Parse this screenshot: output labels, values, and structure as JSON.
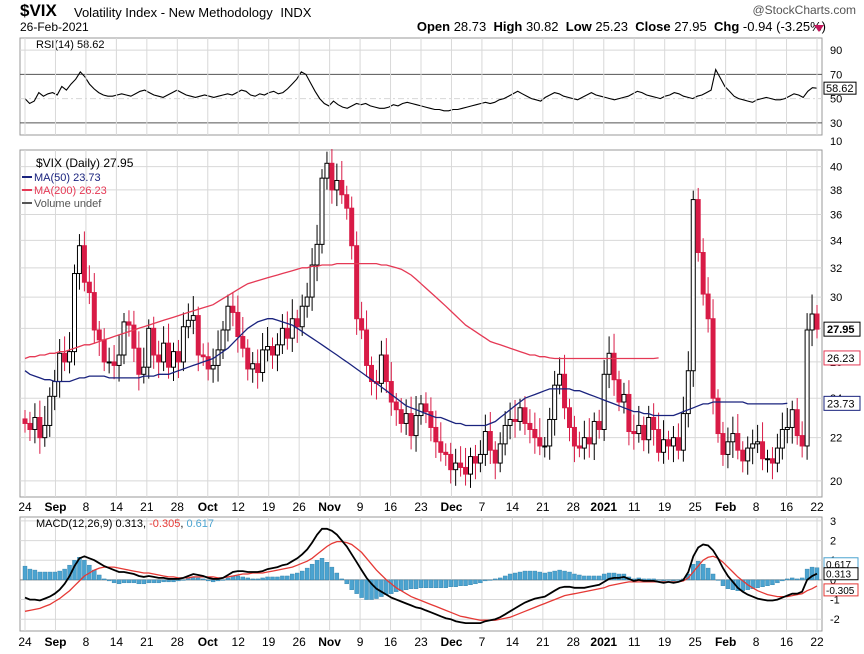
{
  "header": {
    "symbol": "$VIX",
    "name": "Volatility Index - New Methodology",
    "exchange": "INDX",
    "date": "26-Feb-2021",
    "open_label": "Open",
    "open": "28.73",
    "high_label": "High",
    "high": "30.82",
    "low_label": "Low",
    "low": "25.23",
    "close_label": "Close",
    "close": "27.95",
    "chg_label": "Chg",
    "chg": "-0.94 (-3.25%)",
    "watermark": "@StockCharts.com"
  },
  "colors": {
    "up": "#000000",
    "down": "#d81b46",
    "ma50": "#1a237e",
    "ma200": "#e53955",
    "macd_hist": "#4ba3d0",
    "macd_signal": "#e53935",
    "grid": "#d8d8d8"
  },
  "chart_data": [
    {
      "type": "line",
      "panel": "RSI",
      "title": "RSI(14) 58.62",
      "levels": [
        30,
        50,
        70,
        90
      ],
      "overbought": 70,
      "oversold": 30,
      "current": 58.62,
      "current_label": "58.62",
      "values": [
        50,
        46,
        48,
        55,
        52,
        54,
        55,
        53,
        60,
        57,
        62,
        66,
        72,
        68,
        62,
        58,
        55,
        53,
        52,
        52,
        53,
        54,
        53,
        52,
        54,
        56,
        57,
        55,
        53,
        52,
        51,
        53,
        55,
        57,
        55,
        53,
        52,
        51,
        52,
        53,
        52,
        51,
        52,
        53,
        54,
        53,
        55,
        57,
        56,
        53,
        52,
        54,
        53,
        55,
        56,
        54,
        55,
        58,
        62,
        66,
        72,
        70,
        63,
        56,
        50,
        46,
        44,
        48,
        45,
        43,
        42,
        44,
        46,
        45,
        46,
        44,
        43,
        42,
        42,
        43,
        45,
        44,
        46,
        47,
        46,
        45,
        44,
        43,
        42,
        41,
        41,
        40,
        40,
        41,
        41,
        42,
        43,
        44,
        45,
        46,
        47,
        46,
        47,
        49,
        50,
        52,
        54,
        56,
        54,
        52,
        50,
        49,
        48,
        51,
        53,
        55,
        54,
        52,
        51,
        50,
        49,
        51,
        53,
        55,
        53,
        52,
        51,
        50,
        49,
        50,
        51,
        52,
        54,
        56,
        55,
        53,
        52,
        51,
        50,
        52,
        53,
        55,
        54,
        52,
        51,
        50,
        52,
        53,
        55,
        57,
        74,
        67,
        60,
        56,
        52,
        50,
        49,
        48,
        47,
        49,
        50,
        51,
        50,
        49,
        49,
        50,
        52,
        54,
        53,
        51,
        56,
        59,
        58.62
      ]
    },
    {
      "type": "candlestick",
      "panel": "Price",
      "title": "$VIX (Daily) 27.95",
      "legend": [
        {
          "name": "MA(50) 23.73",
          "color": "#1a237e"
        },
        {
          "name": "MA(200) 26.23",
          "color": "#e53955"
        },
        {
          "name": "Volume undef",
          "color": "#555555"
        }
      ],
      "y_ticks": [
        20,
        22,
        24,
        26,
        28,
        30,
        32,
        34,
        36,
        38,
        40
      ],
      "ylim": [
        19.3,
        41.5
      ],
      "scale": "log",
      "x_tick_labels": [
        "24",
        "Sep",
        "8",
        "14",
        "21",
        "28",
        "Oct",
        "12",
        "19",
        "26",
        "Nov",
        "9",
        "16",
        "23",
        "Dec",
        "7",
        "14",
        "21",
        "28",
        "2021",
        "11",
        "19",
        "25",
        "Feb",
        "8",
        "16",
        "22"
      ],
      "price_labels": [
        {
          "value": 27.95,
          "text": "27.95",
          "bg": "#ffffff",
          "color": "#000000"
        },
        {
          "value": 26.23,
          "text": "26.23",
          "bg": "#ffffff",
          "color": "#000000"
        },
        {
          "value": 23.73,
          "text": "23.73",
          "bg": "#ffffff",
          "color": "#000000"
        }
      ],
      "close": [
        22.7,
        22.4,
        23.0,
        22.0,
        22.6,
        24.1,
        24.9,
        26.5,
        26.0,
        26.6,
        31.6,
        33.6,
        31.0,
        30.3,
        27.9,
        27.3,
        26.0,
        26.0,
        25.8,
        26.4,
        28.4,
        28.2,
        26.8,
        25.3,
        25.7,
        28.0,
        26.4,
        26.0,
        27.1,
        25.7,
        26.6,
        26.0,
        28.1,
        28.5,
        28.8,
        26.4,
        26.3,
        25.6,
        25.8,
        26.7,
        27.9,
        29.4,
        29.0,
        27.5,
        26.8,
        25.6,
        25.9,
        25.4,
        26.7,
        26.9,
        26.4,
        27.0,
        28.0,
        27.4,
        28.6,
        28.1,
        29.4,
        30.0,
        32.2,
        33.7,
        39.0,
        40.3,
        38.0,
        38.8,
        37.6,
        36.5,
        33.6,
        28.6,
        27.9,
        25.8,
        24.9,
        24.8,
        26.4,
        24.9,
        23.8,
        23.4,
        22.7,
        23.2,
        22.1,
        23.1,
        23.7,
        23.3,
        22.5,
        21.8,
        21.3,
        21.2,
        20.5,
        20.8,
        20.6,
        20.3,
        21.1,
        20.8,
        21.2,
        22.3,
        21.4,
        20.8,
        21.7,
        22.6,
        22.9,
        22.8,
        23.5,
        22.7,
        22.4,
        22.0,
        21.6,
        21.6,
        22.9,
        24.7,
        25.3,
        23.5,
        22.5,
        21.6,
        21.5,
        22.0,
        21.7,
        22.8,
        22.4,
        25.3,
        26.5,
        25.0,
        23.8,
        24.2,
        22.3,
        22.2,
        22.6,
        21.9,
        23.0,
        22.4,
        21.3,
        21.9,
        21.6,
        22.0,
        21.4,
        23.2,
        25.5,
        37.2,
        33.1,
        30.2,
        28.6,
        24.0,
        22.2,
        21.2,
        21.8,
        22.2,
        21.4,
        20.9,
        21.5,
        21.7,
        21.8,
        21.0,
        21.0,
        20.8,
        21.5,
        22.4,
        22.5,
        23.4,
        22.1,
        21.6,
        27.9,
        28.9,
        27.95
      ],
      "ma50": [
        25.5,
        25.3,
        25.2,
        25.1,
        25.0,
        25.0,
        24.9,
        24.9,
        24.9,
        24.9,
        25.0,
        25.1,
        25.1,
        25.2,
        25.2,
        25.2,
        25.2,
        25.1,
        25.1,
        25.1,
        25.1,
        25.1,
        25.1,
        25.1,
        25.2,
        25.2,
        25.2,
        25.3,
        25.3,
        25.3,
        25.4,
        25.5,
        25.6,
        25.7,
        25.8,
        25.9,
        26.0,
        26.1,
        26.2,
        26.4,
        26.6,
        26.8,
        27.1,
        27.4,
        27.7,
        28.0,
        28.2,
        28.4,
        28.5,
        28.6,
        28.6,
        28.5,
        28.4,
        28.3,
        28.2,
        28.0,
        27.8,
        27.6,
        27.4,
        27.2,
        27.0,
        26.8,
        26.6,
        26.4,
        26.2,
        26.0,
        25.8,
        25.6,
        25.4,
        25.2,
        25.0,
        24.8,
        24.6,
        24.4,
        24.2,
        24.0,
        23.8,
        23.6,
        23.5,
        23.4,
        23.3,
        23.2,
        23.1,
        23.0,
        23.0,
        22.9,
        22.8,
        22.7,
        22.7,
        22.6,
        22.6,
        22.6,
        22.6,
        22.6,
        22.7,
        22.8,
        23.0,
        23.2,
        23.4,
        23.6,
        23.8,
        24.0,
        24.1,
        24.2,
        24.3,
        24.4,
        24.5,
        24.5,
        24.5,
        24.5,
        24.5,
        24.4,
        24.4,
        24.3,
        24.2,
        24.1,
        24.0,
        23.9,
        23.8,
        23.7,
        23.6,
        23.5,
        23.4,
        23.3,
        23.3,
        23.2,
        23.2,
        23.1,
        23.1,
        23.1,
        23.1,
        23.1,
        23.2,
        23.3,
        23.4,
        23.5,
        23.6,
        23.7,
        23.7,
        23.8,
        23.8,
        23.8,
        23.8,
        23.8,
        23.8,
        23.8,
        23.7,
        23.7,
        23.7,
        23.7,
        23.7,
        23.7,
        23.7,
        23.7,
        23.73
      ],
      "ma200": [
        26.2,
        26.3,
        26.3,
        26.4,
        26.4,
        26.5,
        26.5,
        26.6,
        26.6,
        26.7,
        26.8,
        26.9,
        27.0,
        27.0,
        27.1,
        27.2,
        27.3,
        27.4,
        27.5,
        27.6,
        27.7,
        27.8,
        27.9,
        28.0,
        28.1,
        28.2,
        28.3,
        28.4,
        28.5,
        28.6,
        28.7,
        28.8,
        28.9,
        29.0,
        29.1,
        29.2,
        29.3,
        29.4,
        29.5,
        29.7,
        29.9,
        30.1,
        30.3,
        30.5,
        30.7,
        30.9,
        31.0,
        31.1,
        31.2,
        31.3,
        31.4,
        31.5,
        31.6,
        31.7,
        31.8,
        31.9,
        32.0,
        32.0,
        32.1,
        32.1,
        32.2,
        32.2,
        32.2,
        32.3,
        32.3,
        32.3,
        32.3,
        32.3,
        32.3,
        32.3,
        32.3,
        32.3,
        32.2,
        32.2,
        32.1,
        32.0,
        31.9,
        31.7,
        31.5,
        31.2,
        30.9,
        30.6,
        30.3,
        30.0,
        29.7,
        29.4,
        29.1,
        28.8,
        28.5,
        28.2,
        28.0,
        27.8,
        27.6,
        27.4,
        27.2,
        27.1,
        27.0,
        26.9,
        26.8,
        26.7,
        26.6,
        26.5,
        26.4,
        26.4,
        26.3,
        26.3,
        26.23,
        26.2,
        26.2,
        26.2,
        26.2,
        26.2,
        26.2,
        26.2,
        26.2,
        26.2,
        26.2,
        26.2,
        26.2,
        26.2,
        26.2,
        26.2,
        26.2,
        26.2,
        26.2,
        26.2,
        26.2,
        26.2,
        26.23
      ]
    },
    {
      "type": "bar+line",
      "panel": "MACD",
      "title": "MACD(12,26,9)",
      "macd_label": "0.313",
      "signal_label": "-0.305",
      "hist_label": "0.617",
      "y_ticks": [
        -2,
        -1,
        0,
        1,
        2,
        3
      ],
      "ylim": [
        -2.6,
        3.2
      ],
      "x_tick_labels": [
        "24",
        "Sep",
        "8",
        "14",
        "21",
        "28",
        "Oct",
        "12",
        "19",
        "26",
        "Nov",
        "9",
        "16",
        "23",
        "Dec",
        "7",
        "14",
        "21",
        "28",
        "2021",
        "11",
        "19",
        "25",
        "Feb",
        "8",
        "16",
        "22"
      ],
      "price_labels": [
        {
          "value": 0.617,
          "text": "0.617"
        },
        {
          "value": 0.313,
          "text": "0.313"
        },
        {
          "value": -0.305,
          "text": "-0.305"
        }
      ],
      "macd": [
        -0.9,
        -1.0,
        -1.0,
        -1.05,
        -0.95,
        -0.85,
        -0.7,
        -0.5,
        -0.2,
        0.2,
        0.7,
        1.1,
        1.2,
        1.1,
        1.0,
        0.85,
        0.7,
        0.6,
        0.5,
        0.4,
        0.4,
        0.35,
        0.3,
        0.2,
        0.15,
        0.2,
        0.15,
        0.1,
        0.1,
        0.05,
        0.05,
        0.05,
        0.1,
        0.2,
        0.3,
        0.25,
        0.2,
        0.1,
        0.05,
        0.05,
        0.1,
        0.25,
        0.4,
        0.45,
        0.45,
        0.4,
        0.4,
        0.4,
        0.45,
        0.55,
        0.6,
        0.65,
        0.75,
        0.8,
        0.95,
        1.1,
        1.3,
        1.55,
        1.9,
        2.3,
        2.6,
        2.6,
        2.5,
        2.3,
        2.0,
        1.7,
        1.3,
        0.9,
        0.5,
        0.1,
        -0.2,
        -0.45,
        -0.6,
        -0.75,
        -0.9,
        -1.0,
        -1.1,
        -1.2,
        -1.3,
        -1.4,
        -1.45,
        -1.55,
        -1.65,
        -1.75,
        -1.85,
        -1.95,
        -2.0,
        -2.1,
        -2.15,
        -2.2,
        -2.2,
        -2.2,
        -2.2,
        -2.1,
        -2.05,
        -2.0,
        -1.9,
        -1.75,
        -1.6,
        -1.45,
        -1.3,
        -1.15,
        -1.05,
        -0.95,
        -0.9,
        -0.85,
        -0.7,
        -0.55,
        -0.4,
        -0.35,
        -0.35,
        -0.4,
        -0.4,
        -0.4,
        -0.35,
        -0.3,
        -0.25,
        -0.1,
        0.05,
        0.1,
        0.1,
        0.15,
        0.05,
        -0.05,
        0.0,
        -0.05,
        -0.05,
        -0.05,
        -0.1,
        -0.15,
        -0.1,
        -0.15,
        -0.1,
        0.0,
        0.4,
        1.2,
        1.65,
        1.8,
        1.75,
        1.5,
        1.1,
        0.6,
        0.2,
        -0.1,
        -0.4,
        -0.6,
        -0.75,
        -0.85,
        -0.95,
        -1.0,
        -1.05,
        -1.05,
        -1.0,
        -0.9,
        -0.8,
        -0.7,
        -0.7,
        -0.6,
        0.0,
        0.2,
        0.313
      ],
      "signal": [
        -1.6,
        -1.55,
        -1.5,
        -1.45,
        -1.35,
        -1.25,
        -1.1,
        -0.95,
        -0.75,
        -0.55,
        -0.3,
        -0.05,
        0.2,
        0.35,
        0.5,
        0.6,
        0.65,
        0.65,
        0.65,
        0.6,
        0.55,
        0.5,
        0.45,
        0.4,
        0.35,
        0.35,
        0.3,
        0.25,
        0.2,
        0.15,
        0.15,
        0.1,
        0.1,
        0.1,
        0.15,
        0.15,
        0.15,
        0.15,
        0.15,
        0.1,
        0.1,
        0.15,
        0.2,
        0.25,
        0.3,
        0.3,
        0.35,
        0.35,
        0.35,
        0.4,
        0.45,
        0.5,
        0.55,
        0.6,
        0.65,
        0.75,
        0.85,
        0.95,
        1.1,
        1.3,
        1.5,
        1.7,
        1.85,
        1.95,
        1.95,
        1.9,
        1.8,
        1.6,
        1.4,
        1.1,
        0.8,
        0.5,
        0.25,
        0.0,
        -0.2,
        -0.4,
        -0.55,
        -0.7,
        -0.85,
        -0.95,
        -1.05,
        -1.15,
        -1.25,
        -1.35,
        -1.45,
        -1.55,
        -1.65,
        -1.75,
        -1.85,
        -1.9,
        -1.95,
        -2.0,
        -2.05,
        -2.05,
        -2.05,
        -2.05,
        -2.0,
        -1.95,
        -1.9,
        -1.8,
        -1.7,
        -1.6,
        -1.5,
        -1.4,
        -1.3,
        -1.2,
        -1.1,
        -1.0,
        -0.9,
        -0.8,
        -0.75,
        -0.7,
        -0.65,
        -0.6,
        -0.55,
        -0.5,
        -0.45,
        -0.4,
        -0.3,
        -0.25,
        -0.2,
        -0.15,
        -0.1,
        -0.1,
        -0.1,
        -0.1,
        -0.1,
        -0.1,
        -0.1,
        -0.1,
        -0.1,
        -0.1,
        -0.1,
        -0.05,
        0.1,
        0.4,
        0.7,
        1.0,
        1.15,
        1.2,
        1.1,
        0.9,
        0.65,
        0.4,
        0.15,
        -0.05,
        -0.25,
        -0.4,
        -0.55,
        -0.65,
        -0.75,
        -0.8,
        -0.85,
        -0.85,
        -0.85,
        -0.8,
        -0.75,
        -0.7,
        -0.55,
        -0.45,
        -0.305
      ]
    }
  ]
}
